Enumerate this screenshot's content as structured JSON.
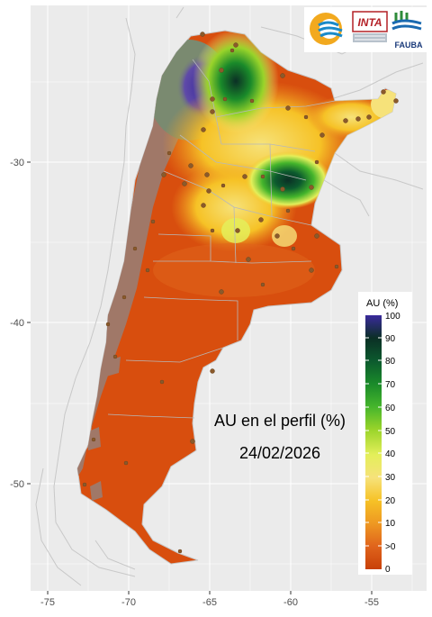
{
  "map": {
    "title_line1": "AU en el perfil (%)",
    "title_line2": "24/02/2026",
    "x_ticks": [
      "-75",
      "-70",
      "-65",
      "-60",
      "-55"
    ],
    "y_ticks": [
      "-30",
      "-40",
      "-50"
    ],
    "colors": {
      "panel_bg": "#ebebeb",
      "grid": "#ffffff",
      "land_border": "#c8c8c8",
      "dry_orange": "#d84e0e",
      "no_data_brown": "#a07868",
      "station_dot": "#8b5a2b"
    }
  },
  "legend": {
    "title": "AU (%)",
    "labels": [
      "100",
      "90",
      "80",
      "70",
      "60",
      "50",
      "40",
      "30",
      "20",
      "10",
      ">0",
      "0"
    ],
    "colors": [
      "#3a2a9c",
      "#0b2f25",
      "#0c5a2e",
      "#1a8a2a",
      "#45b52c",
      "#9ad42a",
      "#e4ef5a",
      "#f6e27a",
      "#f6c226",
      "#ee9822",
      "#e0641c",
      "#c84008"
    ]
  },
  "logos": {
    "inta_text": "INTA",
    "fauba_text": "FAUBA"
  }
}
